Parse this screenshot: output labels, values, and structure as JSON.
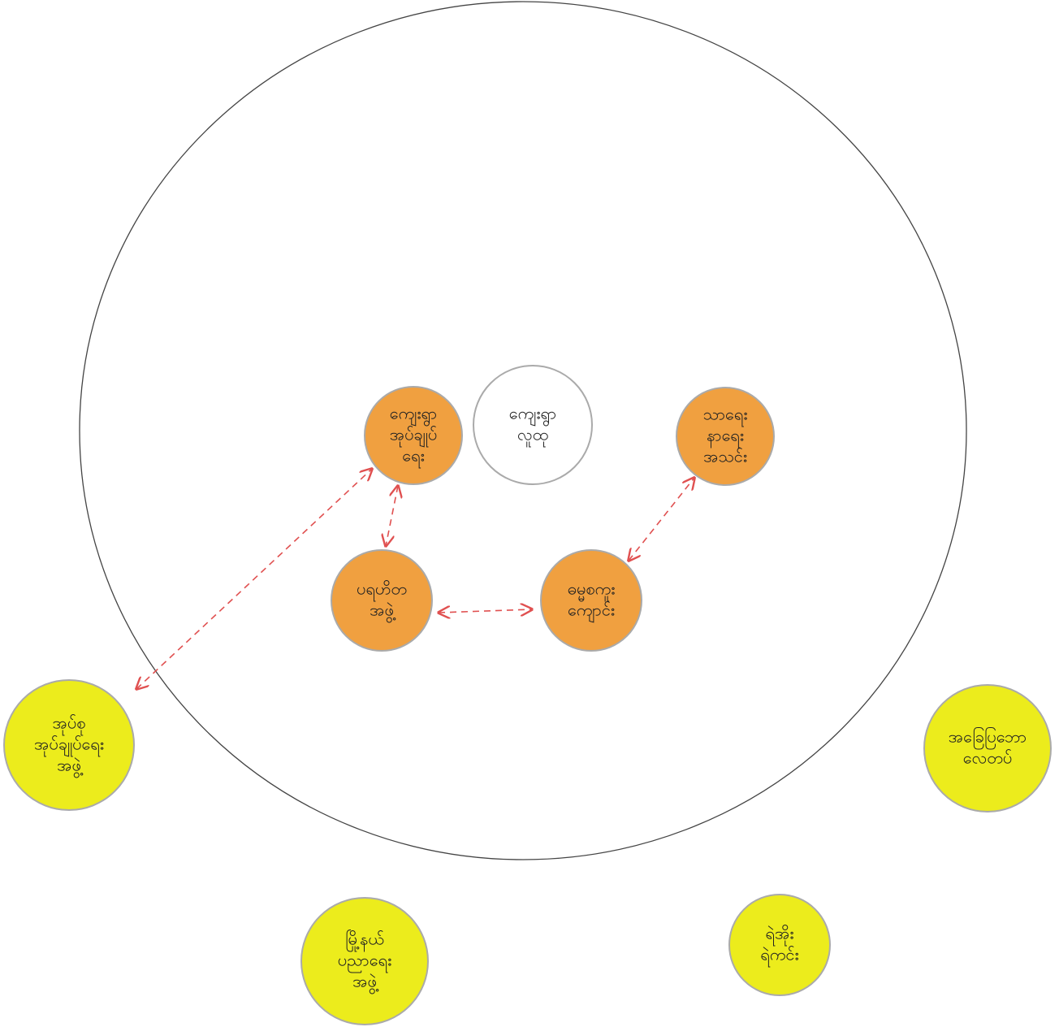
{
  "nodes": [
    {
      "lines": [
        "ကျေးရွာ",
        "လူထု"
      ]
    },
    {
      "lines": [
        "ကျေးရွာ",
        "အုပ်ချုပ်",
        "ရေး"
      ]
    },
    {
      "lines": [
        "သာရေး",
        "နာရေး",
        "အသင်း"
      ]
    },
    {
      "lines": [
        "ပရဟိတ",
        "အဖွဲ့"
      ]
    },
    {
      "lines": [
        "ဓမ္မစကူး",
        "ကျောင်း"
      ]
    },
    {
      "lines": [
        "အုပ်စု",
        "အုပ်ချုပ်ရေး",
        "အဖွဲ့"
      ]
    },
    {
      "lines": [
        "အခြေပြဘော",
        "လေတပ်"
      ]
    },
    {
      "lines": [
        "မြို့နယ်",
        "ပညာရေး",
        "အဖွဲ့"
      ]
    },
    {
      "lines": [
        "ရဲအိုး",
        "ရဲကင်း"
      ]
    }
  ]
}
